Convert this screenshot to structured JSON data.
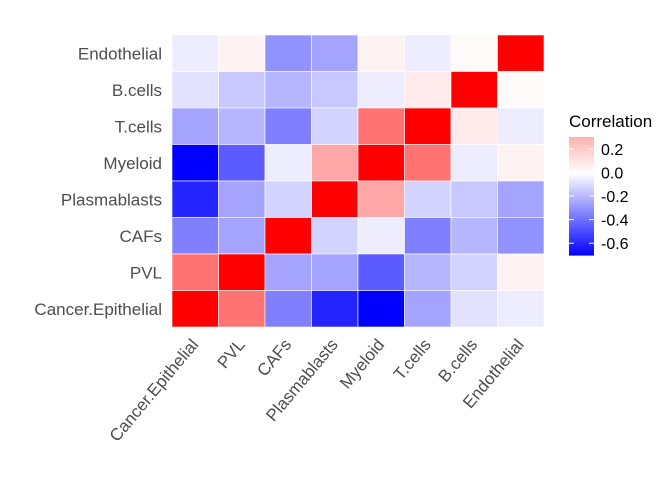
{
  "chart_data": {
    "type": "heatmap",
    "title": "",
    "xlabel": "",
    "ylabel": "",
    "x_categories": [
      "Cancer.Epithelial",
      "PVL",
      "CAFs",
      "Plasmablasts",
      "Myeloid",
      "T.cells",
      "B.cells",
      "Endothelial"
    ],
    "y_categories_top_to_bottom": [
      "Endothelial",
      "B.cells",
      "T.cells",
      "Myeloid",
      "Plasmablasts",
      "CAFs",
      "PVL",
      "Cancer.Epithelial"
    ],
    "values": [
      [
        -0.05,
        0.05,
        -0.3,
        -0.25,
        0.05,
        -0.05,
        0.02,
        1.0
      ],
      [
        -0.08,
        -0.15,
        -0.2,
        -0.15,
        -0.05,
        0.08,
        1.0,
        0.02
      ],
      [
        -0.25,
        -0.2,
        -0.35,
        -0.12,
        0.55,
        1.0,
        0.08,
        -0.05
      ],
      [
        -0.7,
        -0.45,
        -0.05,
        0.35,
        1.0,
        0.55,
        -0.05,
        0.05
      ],
      [
        -0.6,
        -0.25,
        -0.12,
        1.0,
        0.35,
        -0.12,
        -0.15,
        -0.25
      ],
      [
        -0.35,
        -0.25,
        1.0,
        -0.12,
        -0.05,
        -0.35,
        -0.2,
        -0.3
      ],
      [
        0.55,
        1.0,
        -0.25,
        -0.25,
        -0.45,
        -0.2,
        -0.12,
        0.05
      ],
      [
        1.0,
        0.55,
        -0.35,
        -0.6,
        -0.7,
        -0.25,
        -0.08,
        -0.05
      ]
    ],
    "legend": {
      "title": "Correlation",
      "ticks": [
        0.2,
        0.0,
        -0.2,
        -0.4,
        -0.6
      ],
      "tick_labels": [
        "0.2",
        "0.0",
        "-0.2",
        "-0.4",
        "-0.6"
      ],
      "range": [
        -0.7,
        0.3
      ],
      "placement": "right"
    },
    "colors": {
      "low": "#0000ff",
      "mid": "#ffffff",
      "high": "#ff0000"
    },
    "color_scale_limits": [
      -0.7,
      1.0
    ],
    "grid": false
  }
}
